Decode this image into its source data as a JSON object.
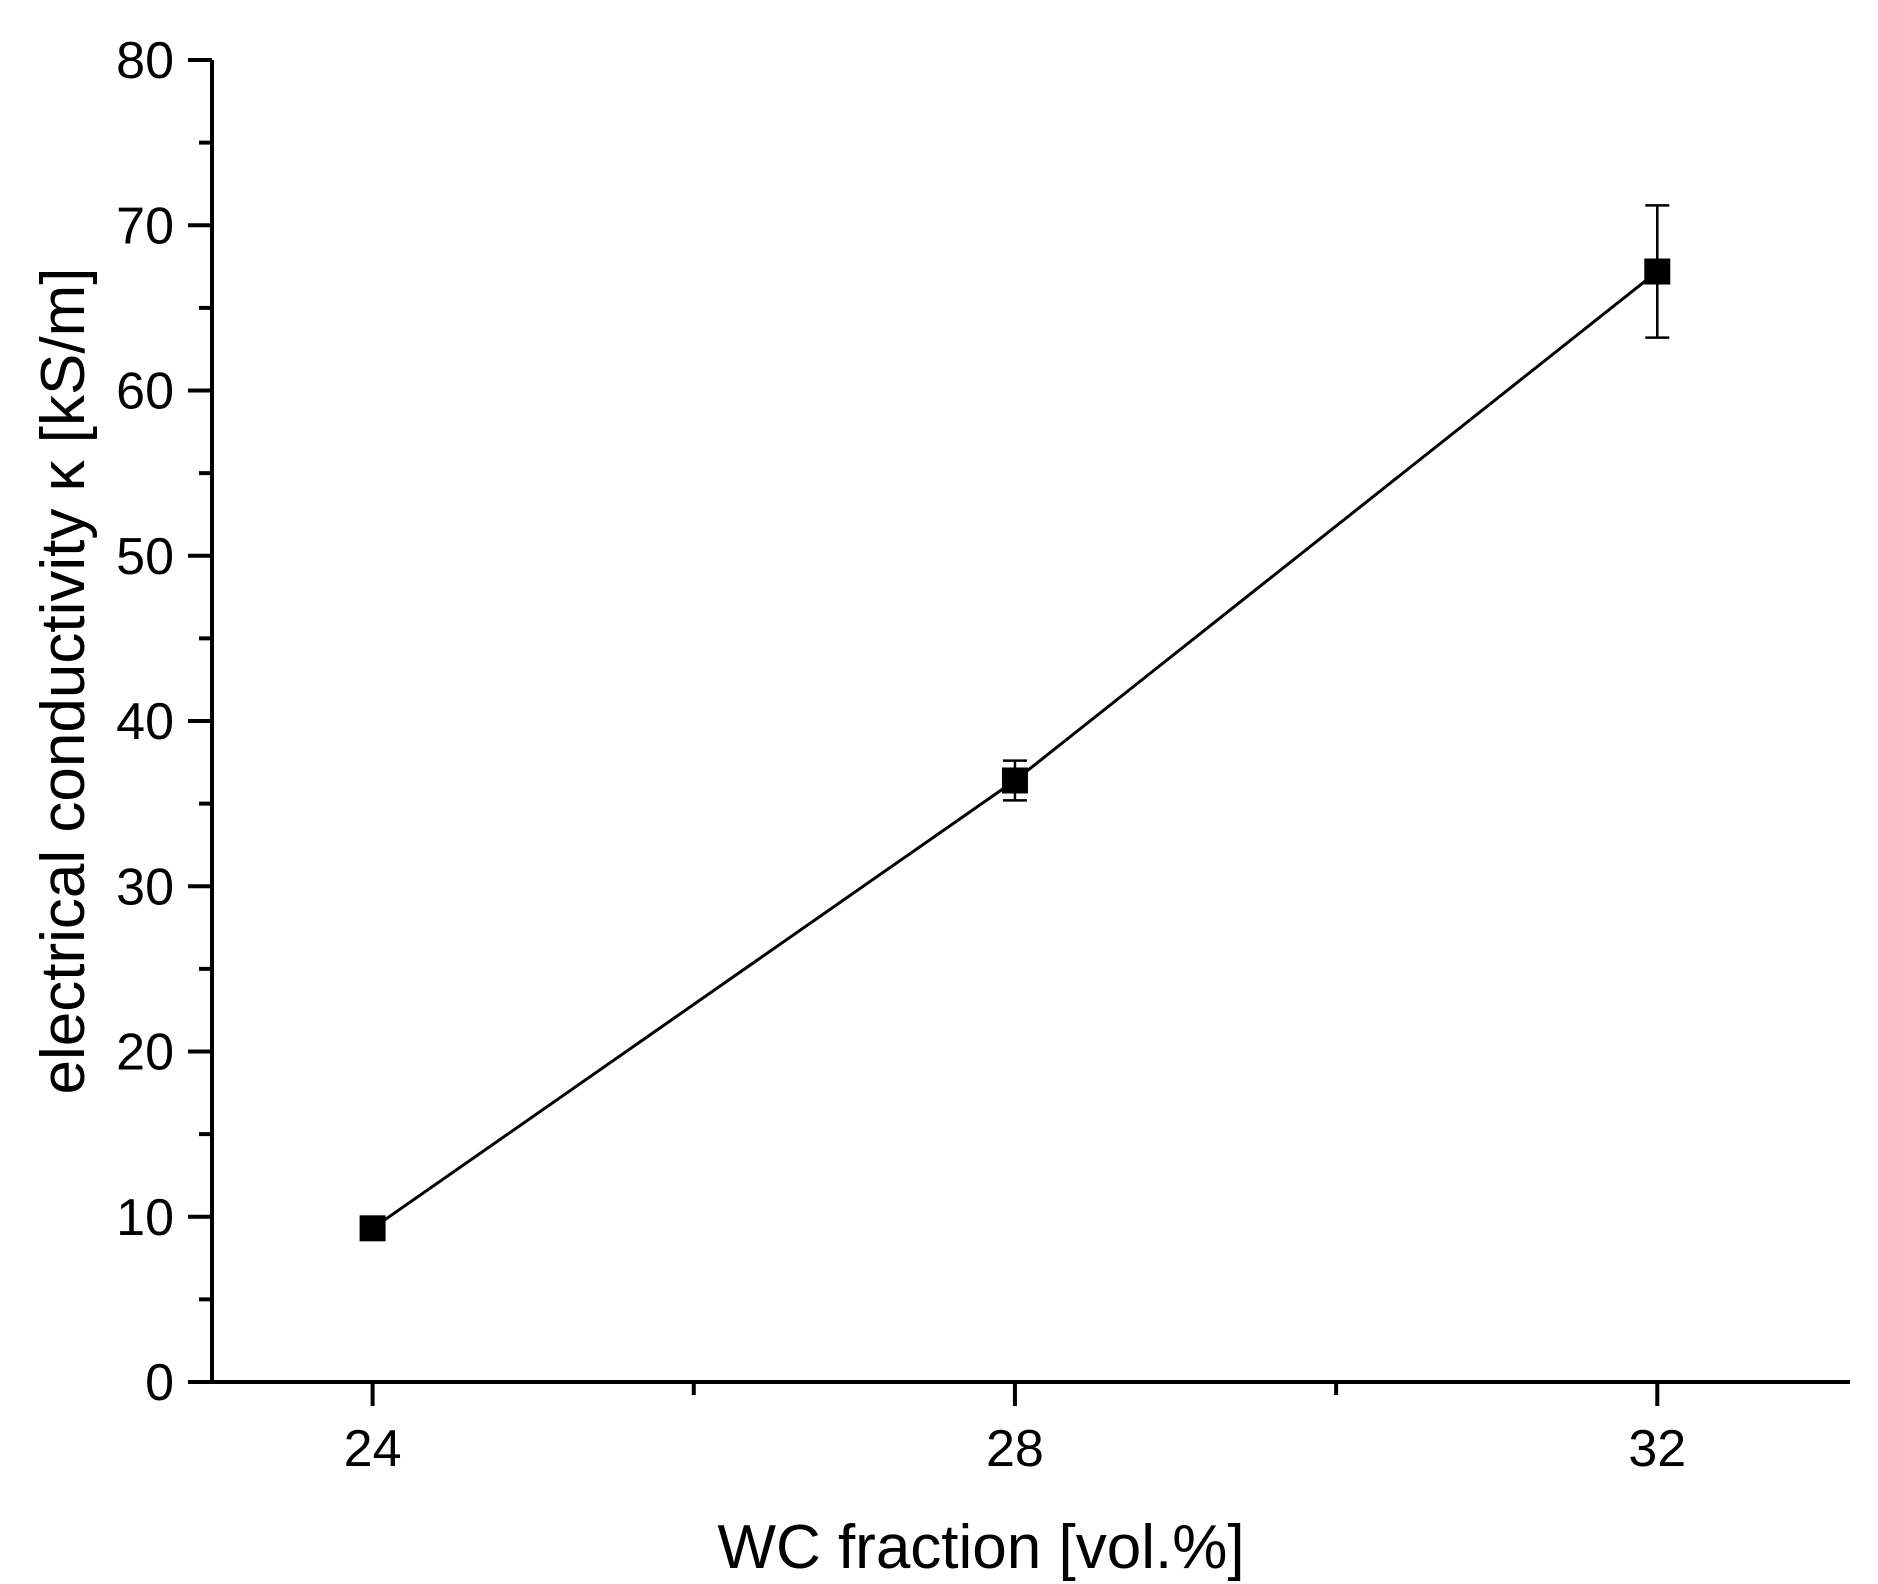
{
  "chart_data": {
    "type": "line",
    "title": "",
    "xlabel": "WC fraction [vol.%]",
    "ylabel": "electrical conductivity κ [kS/m]",
    "xlim": [
      23.0,
      33.2
    ],
    "ylim": [
      0,
      80
    ],
    "x_ticks": [
      24,
      28,
      32
    ],
    "x_minor_ticks": [
      26,
      30
    ],
    "y_ticks": [
      0,
      10,
      20,
      30,
      40,
      50,
      60,
      70,
      80
    ],
    "y_minor_ticks": [
      5,
      15,
      25,
      35,
      45,
      55,
      65,
      75
    ],
    "grid": false,
    "legend": "none",
    "marker": "square",
    "series": [
      {
        "x": [
          24,
          28,
          32
        ],
        "y": [
          9.3,
          36.4,
          67.2
        ],
        "yerr": [
          0.3,
          1.2,
          4.0
        ],
        "color": "#000000"
      }
    ]
  }
}
